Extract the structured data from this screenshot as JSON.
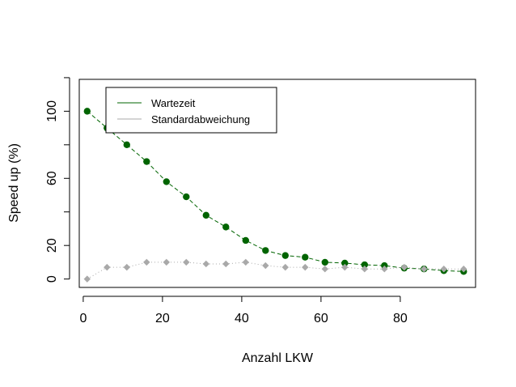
{
  "chart_data": {
    "type": "scatter",
    "xlabel": "Anzahl LKW",
    "ylabel": "Speed up (%)",
    "xlim": [
      -1,
      99
    ],
    "ylim": [
      -5,
      119
    ],
    "xticks": [
      0,
      20,
      40,
      60,
      80
    ],
    "yticks": [
      0,
      20,
      40,
      60,
      80,
      100,
      120
    ],
    "ytick_labels": [
      "0",
      "20",
      "",
      "60",
      "",
      "100",
      ""
    ],
    "grid": false,
    "legend": "top-left",
    "x": [
      1,
      6,
      11,
      16,
      21,
      26,
      31,
      36,
      41,
      46,
      51,
      56,
      61,
      66,
      71,
      76,
      81,
      86,
      91,
      96
    ],
    "series": [
      {
        "name": "Wartezeit",
        "color": "#006400",
        "marker": "circle",
        "line": "dashed",
        "values": [
          100,
          90,
          80,
          70,
          58,
          49,
          38,
          31,
          23,
          17,
          14,
          13,
          10,
          9.5,
          8.5,
          8,
          6.5,
          6,
          5,
          4.5
        ]
      },
      {
        "name": "Standardabweichung",
        "color": "#a9a9a9",
        "marker": "diamond",
        "line": "dotted",
        "values": [
          0,
          7,
          7,
          10,
          10,
          10,
          9,
          9,
          10,
          8,
          7,
          7,
          6,
          7,
          6,
          6,
          7,
          6,
          6,
          6
        ]
      }
    ]
  }
}
